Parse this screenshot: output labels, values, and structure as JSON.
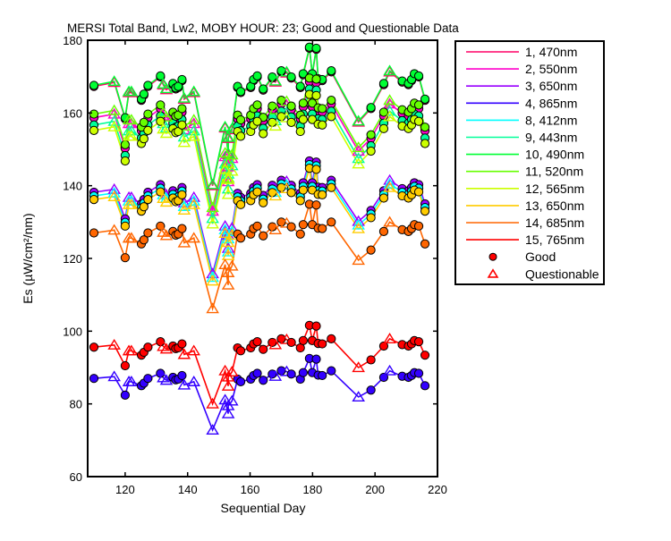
{
  "chart_data": {
    "type": "line",
    "title": "MERSI Total Band,  Lw2, MOBY HOUR: 23;  Good and Questionable Data",
    "xlabel": "Sequential Day",
    "ylabel": "Es (µW/cm²/nm)",
    "xlim": [
      108,
      220
    ],
    "ylim": [
      60,
      180
    ],
    "xticks": [
      120,
      140,
      160,
      180,
      200,
      220
    ],
    "yticks": [
      60,
      80,
      100,
      120,
      140,
      160,
      180
    ],
    "grid": false,
    "legend_position": "outside-right",
    "legend_markers": [
      {
        "label": "Good",
        "marker": "filled-circle",
        "color": "#ff0000"
      },
      {
        "label": "Questionable",
        "marker": "open-triangle",
        "color": "#ff0000"
      }
    ],
    "x": [
      110,
      116.5,
      120,
      121.2,
      122,
      125.2,
      126,
      127.3,
      131.3,
      132.2,
      133.2,
      135.3,
      136.2,
      137,
      138.2,
      138.9,
      142,
      148,
      152,
      153,
      153,
      154.2,
      156,
      157,
      160.2,
      161.1,
      162.3,
      164.2,
      167.1,
      168.1,
      170,
      171.7,
      173.2,
      176.1,
      177,
      179,
      179.9,
      181.2,
      181.8,
      183.1,
      186,
      194.7,
      198.7,
      202.8,
      204.7,
      208.7,
      210.7,
      211.7,
      212.6,
      214,
      216
    ],
    "quality": [
      "G",
      "Q",
      "G",
      "Q",
      "Q",
      "G",
      "G",
      "G",
      "G",
      "Q",
      "Q",
      "G",
      "G",
      "G",
      "G",
      "Q",
      "Q",
      "Q",
      "Q",
      "Q",
      "Q",
      "Q",
      "G",
      "G",
      "G",
      "G",
      "G",
      "G",
      "G",
      "Q",
      "G",
      "Q",
      "G",
      "G",
      "G",
      "G",
      "G",
      "G",
      "G",
      "G",
      "G",
      "Q",
      "G",
      "G",
      "Q",
      "G",
      "G",
      "G",
      "G",
      "G",
      "G"
    ],
    "series": [
      {
        "name": "1, 470nm",
        "color": "#ff0066",
        "values": [
          167.3,
          168.4,
          158.4,
          165.6,
          165.6,
          163.5,
          164.9,
          167.3,
          169.9,
          167.7,
          166.4,
          167.8,
          166.6,
          167.0,
          168.9,
          163.8,
          165.6,
          140.0,
          155.9,
          148.6,
          153.0,
          155.4,
          167.0,
          165.6,
          167.0,
          168.9,
          169.9,
          166.3,
          169.6,
          168.5,
          171.3,
          171.0,
          169.6,
          167.0,
          170.5,
          177.8,
          170.5,
          177.5,
          169.1,
          168.9,
          171.3,
          157.5,
          161.2,
          167.8,
          171.3,
          168.5,
          167.8,
          168.9,
          170.5,
          169.9,
          163.5
        ]
      },
      {
        "name": "2, 550nm",
        "color": "#ff00cc",
        "values": [
          158.7,
          159.7,
          150.3,
          157.1,
          157.1,
          155.1,
          156.4,
          158.7,
          161.2,
          159.1,
          157.9,
          159.2,
          158.1,
          158.4,
          160.2,
          155.4,
          157.1,
          133.0,
          148.0,
          141.1,
          145.2,
          147.5,
          158.4,
          157.1,
          158.4,
          160.2,
          161.2,
          157.8,
          160.9,
          159.9,
          162.5,
          162.2,
          160.9,
          158.4,
          161.7,
          168.6,
          161.7,
          168.3,
          160.4,
          160.2,
          162.5,
          149.5,
          153.0,
          159.2,
          162.5,
          159.9,
          159.2,
          160.2,
          161.7,
          161.2,
          155.1
        ]
      },
      {
        "name": "3, 650nm",
        "color": "#9900ff",
        "values": [
          138.2,
          139.0,
          130.9,
          136.8,
          136.8,
          135.0,
          136.2,
          138.2,
          140.3,
          138.5,
          137.5,
          138.6,
          137.6,
          137.9,
          139.5,
          135.3,
          136.8,
          115.8,
          128.9,
          122.8,
          126.4,
          128.4,
          137.9,
          136.8,
          137.9,
          139.5,
          140.3,
          137.3,
          140.1,
          139.2,
          141.5,
          141.2,
          140.1,
          137.9,
          140.8,
          146.8,
          140.8,
          146.5,
          139.6,
          139.5,
          141.5,
          130.2,
          133.2,
          138.6,
          141.5,
          139.2,
          138.6,
          139.5,
          140.8,
          140.3,
          135.0
        ]
      },
      {
        "name": "4, 865nm",
        "color": "#3300ff",
        "values": [
          87.0,
          87.5,
          82.4,
          86.1,
          86.1,
          85.0,
          85.7,
          87.0,
          88.4,
          87.2,
          86.5,
          87.3,
          86.6,
          86.8,
          87.8,
          85.2,
          86.1,
          72.8,
          81.1,
          77.3,
          79.5,
          80.8,
          86.8,
          86.1,
          86.8,
          87.8,
          88.4,
          86.5,
          88.2,
          87.6,
          89.1,
          88.9,
          88.2,
          86.8,
          88.6,
          92.5,
          88.6,
          92.3,
          87.9,
          87.8,
          89.1,
          81.9,
          83.8,
          87.3,
          89.1,
          87.6,
          87.3,
          87.8,
          88.6,
          88.4,
          85.0
        ]
      },
      {
        "name": "8, 412nm",
        "color": "#00ffff",
        "values": [
          137.2,
          138.0,
          129.9,
          135.8,
          135.8,
          134.0,
          135.2,
          137.2,
          139.3,
          137.5,
          136.5,
          137.6,
          136.6,
          136.9,
          138.5,
          134.3,
          135.8,
          114.8,
          127.9,
          121.8,
          125.4,
          127.4,
          136.9,
          135.8,
          136.9,
          138.5,
          139.3,
          136.3,
          139.1,
          138.2,
          140.5,
          140.2,
          139.1,
          136.9,
          139.8,
          145.8,
          139.8,
          145.5,
          138.6,
          138.5,
          140.5,
          129.2,
          132.2,
          137.6,
          140.5,
          138.2,
          137.6,
          138.5,
          139.8,
          139.3,
          134.0
        ]
      },
      {
        "name": "9, 443nm",
        "color": "#00ff99",
        "values": [
          156.7,
          157.7,
          148.3,
          155.1,
          155.1,
          153.1,
          154.4,
          156.7,
          159.2,
          157.1,
          155.9,
          157.2,
          156.1,
          156.4,
          158.2,
          153.4,
          155.1,
          131.0,
          146.0,
          139.1,
          143.2,
          145.5,
          156.4,
          155.1,
          156.4,
          158.2,
          159.2,
          155.8,
          158.9,
          157.9,
          160.5,
          160.2,
          158.9,
          156.4,
          159.7,
          166.6,
          159.7,
          166.3,
          158.4,
          158.2,
          160.5,
          147.5,
          151.0,
          157.2,
          160.5,
          157.9,
          157.2,
          158.2,
          159.7,
          159.2,
          153.1
        ]
      },
      {
        "name": "10, 490nm",
        "color": "#00ff33",
        "values": [
          167.6,
          168.7,
          158.7,
          165.9,
          165.9,
          163.8,
          165.2,
          167.6,
          170.2,
          168.0,
          166.7,
          168.1,
          166.9,
          167.3,
          169.2,
          164.1,
          165.9,
          140.3,
          156.2,
          148.9,
          153.3,
          155.7,
          167.3,
          165.9,
          167.3,
          169.2,
          170.2,
          166.6,
          169.9,
          168.8,
          171.6,
          171.3,
          169.9,
          167.3,
          170.8,
          178.1,
          170.8,
          177.8,
          169.4,
          169.2,
          171.6,
          157.8,
          161.5,
          168.1,
          171.6,
          168.8,
          168.1,
          169.2,
          170.8,
          170.2,
          163.8
        ]
      },
      {
        "name": "11, 520nm",
        "color": "#66ff00",
        "values": [
          159.7,
          160.7,
          151.3,
          158.1,
          158.1,
          156.1,
          157.4,
          159.7,
          162.2,
          160.1,
          158.9,
          160.2,
          159.1,
          159.4,
          161.2,
          156.4,
          158.1,
          134.0,
          149.0,
          142.1,
          146.2,
          148.5,
          159.4,
          158.1,
          159.4,
          161.2,
          162.2,
          158.8,
          161.9,
          160.9,
          163.5,
          163.2,
          161.9,
          159.4,
          162.7,
          169.6,
          162.7,
          169.3,
          161.4,
          161.2,
          163.5,
          150.5,
          154.0,
          160.2,
          163.5,
          160.9,
          160.2,
          161.2,
          162.7,
          162.2,
          156.1
        ]
      },
      {
        "name": "12, 565nm",
        "color": "#ccff00",
        "values": [
          155.2,
          156.2,
          146.8,
          153.6,
          153.6,
          151.6,
          152.9,
          155.2,
          157.7,
          155.6,
          154.4,
          155.7,
          154.6,
          154.9,
          156.7,
          151.9,
          153.6,
          129.5,
          144.5,
          137.6,
          141.7,
          144.0,
          154.9,
          153.6,
          154.9,
          156.7,
          157.7,
          154.3,
          157.4,
          156.4,
          159.0,
          158.7,
          157.4,
          154.9,
          158.2,
          165.1,
          158.2,
          164.8,
          156.9,
          156.7,
          159.0,
          146.0,
          149.5,
          155.7,
          159.0,
          156.4,
          155.7,
          156.7,
          158.2,
          157.7,
          151.6
        ]
      },
      {
        "name": "13, 650nm",
        "color": "#ffcc00",
        "values": [
          136.2,
          137.0,
          128.9,
          134.8,
          134.8,
          133.0,
          134.2,
          136.2,
          138.3,
          136.5,
          135.5,
          136.6,
          135.6,
          135.9,
          137.5,
          133.3,
          134.8,
          113.8,
          126.9,
          120.8,
          124.4,
          126.4,
          135.9,
          134.8,
          135.9,
          137.5,
          138.3,
          135.3,
          138.1,
          137.2,
          139.5,
          139.2,
          138.1,
          135.9,
          138.8,
          144.8,
          138.8,
          144.5,
          137.6,
          137.5,
          139.5,
          128.2,
          131.2,
          136.6,
          139.5,
          137.2,
          136.6,
          137.5,
          138.8,
          138.3,
          133.0
        ]
      },
      {
        "name": "14, 685nm",
        "color": "#ff6600",
        "values": [
          127.0,
          127.8,
          120.2,
          125.6,
          125.6,
          124.0,
          125.1,
          127.0,
          128.9,
          127.2,
          126.3,
          127.4,
          126.4,
          126.7,
          128.2,
          124.3,
          125.6,
          106.2,
          118.3,
          112.7,
          116.1,
          117.9,
          126.7,
          125.6,
          126.7,
          128.2,
          128.9,
          126.2,
          128.7,
          127.9,
          130.0,
          129.7,
          128.7,
          126.7,
          129.3,
          134.9,
          129.3,
          134.7,
          128.3,
          128.2,
          130.0,
          119.5,
          122.3,
          127.4,
          130.0,
          127.9,
          127.4,
          128.2,
          129.3,
          128.9,
          124.0
        ]
      },
      {
        "name": "15, 765nm",
        "color": "#ff0000",
        "values": [
          95.6,
          96.2,
          90.5,
          94.6,
          94.6,
          93.4,
          94.2,
          95.6,
          97.1,
          95.8,
          95.1,
          95.9,
          95.2,
          95.4,
          96.5,
          93.6,
          94.6,
          80.0,
          89.1,
          84.9,
          87.4,
          88.8,
          95.4,
          94.6,
          95.4,
          96.5,
          97.1,
          95.0,
          96.9,
          96.3,
          97.9,
          97.7,
          96.9,
          95.4,
          97.4,
          101.6,
          97.4,
          101.4,
          96.6,
          96.5,
          97.9,
          90.0,
          92.1,
          95.9,
          97.9,
          96.3,
          95.9,
          96.5,
          97.4,
          97.1,
          93.4
        ]
      }
    ]
  }
}
